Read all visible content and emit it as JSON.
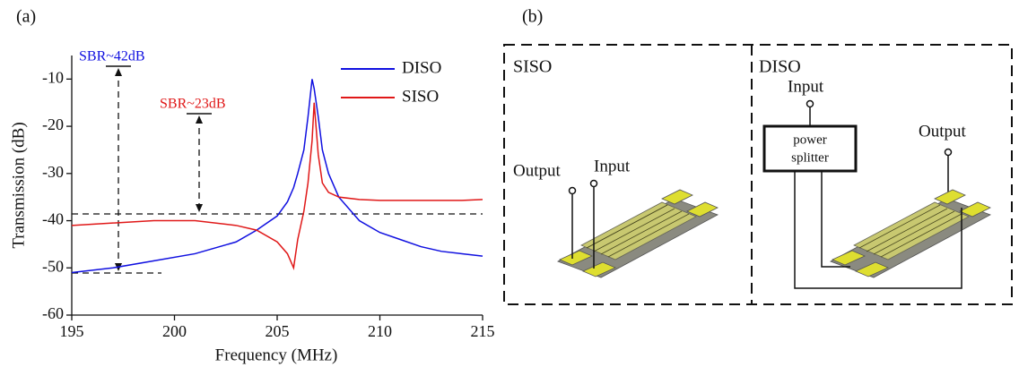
{
  "chart_data": {
    "type": "line",
    "panel_label": "(a)",
    "x_label": "Frequency (MHz)",
    "y_label": "Transmission (dB)",
    "x": [
      195,
      197,
      199,
      201,
      203,
      204,
      205,
      205.5,
      205.8,
      206,
      206.3,
      206.5,
      206.7,
      206.8,
      207,
      207.2,
      207.5,
      208,
      209,
      210,
      211,
      212,
      213,
      214,
      215
    ],
    "series": [
      {
        "name": "DISO",
        "color": "#1010e0",
        "values": [
          -51,
          -50,
          -48.5,
          -47,
          -44.5,
          -42,
          -39,
          -36,
          -33,
          -30,
          -25,
          -18,
          -10,
          -12,
          -18,
          -25,
          -30,
          -35,
          -40,
          -42.5,
          -44,
          -45.5,
          -46.5,
          -47,
          -47.5
        ]
      },
      {
        "name": "SISO",
        "color": "#e01818",
        "values": [
          -41,
          -40.5,
          -40,
          -40,
          -41,
          -42,
          -44.5,
          -47,
          -50,
          -44,
          -38,
          -32,
          -23,
          -15,
          -26,
          -32,
          -34,
          -35,
          -35.5,
          -35.7,
          -35.7,
          -35.7,
          -35.7,
          -35.7,
          -35.5
        ]
      }
    ],
    "xlim": [
      195,
      215
    ],
    "xticks": [
      195,
      200,
      205,
      210,
      215
    ],
    "ylim": [
      -60,
      -5
    ],
    "yticks": [
      -60,
      -50,
      -40,
      -30,
      -20,
      -10
    ],
    "legend": "upper right",
    "annotations": [
      {
        "text": "SBR~42dB",
        "color": "#1010e0"
      },
      {
        "text": "SBR~23dB",
        "color": "#e01818"
      }
    ]
  },
  "diagram": {
    "panel_label": "(b)",
    "siso": {
      "title": "SISO",
      "output": "Output",
      "input": "Input"
    },
    "diso": {
      "title": "DISO",
      "input": "Input",
      "splitter": [
        "power",
        "splitter"
      ],
      "output": "Output"
    }
  }
}
